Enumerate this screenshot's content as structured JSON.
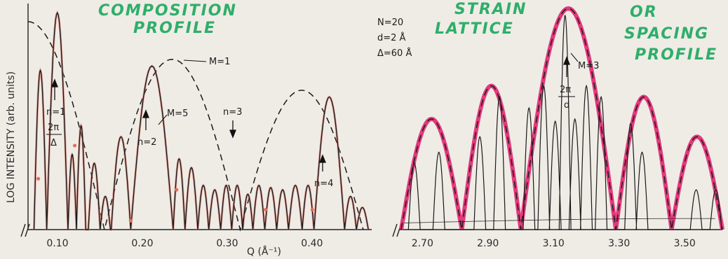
{
  "chart_data": [
    {
      "type": "line",
      "title": "COMPOSITION PROFILE",
      "title_line1": "COMPOSITION",
      "title_line2": "PROFILE",
      "xlabel": "Q (Å⁻¹)",
      "ylabel": "LOG INTENSITY (arb. units)",
      "xlim": [
        0.065,
        0.47
      ],
      "x_ticks": [
        "0.10",
        "0.20",
        "0.30",
        "0.40"
      ],
      "x_tick_values": [
        0.1,
        0.2,
        0.3,
        0.4
      ],
      "series": [
        {
          "name": "M=5",
          "style": "solid",
          "color": "#1a1a1a"
        },
        {
          "name": "M=1",
          "style": "dashed",
          "color": "#1a1a1a"
        }
      ],
      "envelope_peaks": [
        {
          "x": 0.085,
          "y": 0.97
        },
        {
          "x": 0.23,
          "y": 0.77
        },
        {
          "x": 0.385,
          "y": 0.63
        }
      ],
      "envelope_zeros": [
        0.155,
        0.315,
        0.46
      ],
      "main_peaks": [
        {
          "x": 0.085,
          "y": 0.98,
          "label": "n=1"
        },
        {
          "x": 0.21,
          "y": 0.74,
          "label": "n=2"
        },
        {
          "x": 0.315,
          "y": 0.0,
          "label": "n=3"
        },
        {
          "x": 0.415,
          "y": 0.6,
          "label": "n=4"
        }
      ],
      "annotations": [
        "M=1",
        "M=5",
        "n=1",
        "n=2",
        "n=3",
        "n=4",
        "2π/Δ"
      ],
      "params": [
        "N=20",
        "d=2 Å",
        "Δ=60 Å"
      ],
      "grid": false
    },
    {
      "type": "line",
      "title_left": "STRAIN LATTICE",
      "title_right": "OR SPACING PROFILE",
      "title_right_line1": "OR",
      "title_right_line2": "SPACING",
      "title_right_line3": "PROFILE",
      "strain_line1": "STRAIN",
      "strain_line2": "LATTICE",
      "xlim": [
        2.63,
        3.61
      ],
      "x_ticks": [
        "2.70",
        "2.90",
        "3.10",
        "3.30",
        "3.50"
      ],
      "x_tick_values": [
        2.7,
        2.9,
        3.1,
        3.3,
        3.5
      ],
      "envelope_peaks": [
        {
          "x": 2.72,
          "y": 0.5
        },
        {
          "x": 2.91,
          "y": 0.65
        },
        {
          "x": 3.13,
          "y": 1.0
        },
        {
          "x": 3.35,
          "y": 0.6
        },
        {
          "x": 3.53,
          "y": 0.42
        }
      ],
      "envelope_zeros": [
        2.63,
        2.815,
        2.995,
        3.285,
        3.455,
        3.61
      ],
      "annotations": [
        "M=3",
        "2π/d"
      ],
      "envelope_color": "#e0266f",
      "grid": false
    }
  ],
  "labels": {
    "m1": "M=1",
    "m5": "M=5",
    "m3": "M=3",
    "n1": "n=1",
    "n2": "n=2",
    "n3": "n=3",
    "n4": "n=4",
    "two_pi": "2π",
    "delta": "Δ",
    "d": "d"
  }
}
